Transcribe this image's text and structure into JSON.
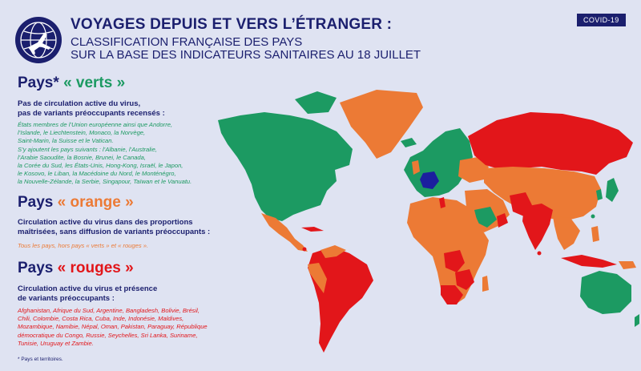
{
  "header": {
    "title": "VOYAGES DEPUIS ET VERS L’ÉTRANGER :",
    "subtitle_line1": "CLASSIFICATION FRANÇAISE DES PAYS",
    "subtitle_line2": "SUR LA BASE DES INDICATEURS SANITAIRES AU 18 JUILLET",
    "badge": "COVID-19",
    "logo_icon": "airplane-globe-icon"
  },
  "colors": {
    "background": "#dfe3f2",
    "navy": "#1b1f6e",
    "green": "#1c9a62",
    "orange": "#ec7a35",
    "red": "#e2161a",
    "france": "#1b1f9e"
  },
  "legend": {
    "green": {
      "prefix": "Pays*",
      "word": "« verts »",
      "desc_line1": "Pas de circulation active du virus,",
      "desc_line2": "pas de variants préoccupants recensés :",
      "list": [
        "États membres de l’Union européenne ainsi que Andorre,",
        "l’Islande, le Liechtenstein, Monaco, la Norvège,",
        "Saint-Marin, la Suisse et le Vatican.",
        "S’y ajoutent les pays suivants : l’Albanie, l’Australie,",
        "l’Arabie Saoudite, la Bosnie, Brunei, le Canada,",
        "la Corée du Sud, les États-Unis, Hong-Kong, Israël, le Japon,",
        "le Kosovo, le Liban, la Macédoine du Nord, le Monténégro,",
        "la Nouvelle-Zélande, la Serbie, Singapour, Taïwan et le Vanuatu."
      ]
    },
    "orange": {
      "prefix": "Pays",
      "word": "« orange »",
      "desc_line1": "Circulation active du virus dans des proportions",
      "desc_line2": "maîtrisées, sans diffusion de variants préoccupants :",
      "list": [
        "Tous les pays, hors pays « verts » et « rouges »."
      ]
    },
    "red": {
      "prefix": "Pays",
      "word": "« rouges »",
      "desc_line1": "Circulation active du virus et présence",
      "desc_line2": "de variants préoccupants :",
      "list": [
        "Afghanistan, Afrique du Sud, Argentine, Bangladesh, Bolivie, Brésil,",
        "Chili, Colombie, Costa Rica, Cuba, Inde, Indonésie, Maldives,",
        "Mozambique, Namibie, Népal, Oman, Pakistan, Paraguay, République",
        "démocratique du Congo, Russie, Seychelles, Sri Lanka, Suriname,",
        "Tunisie, Uruguay et Zambie."
      ]
    }
  },
  "footnote": "* Pays et territoires."
}
